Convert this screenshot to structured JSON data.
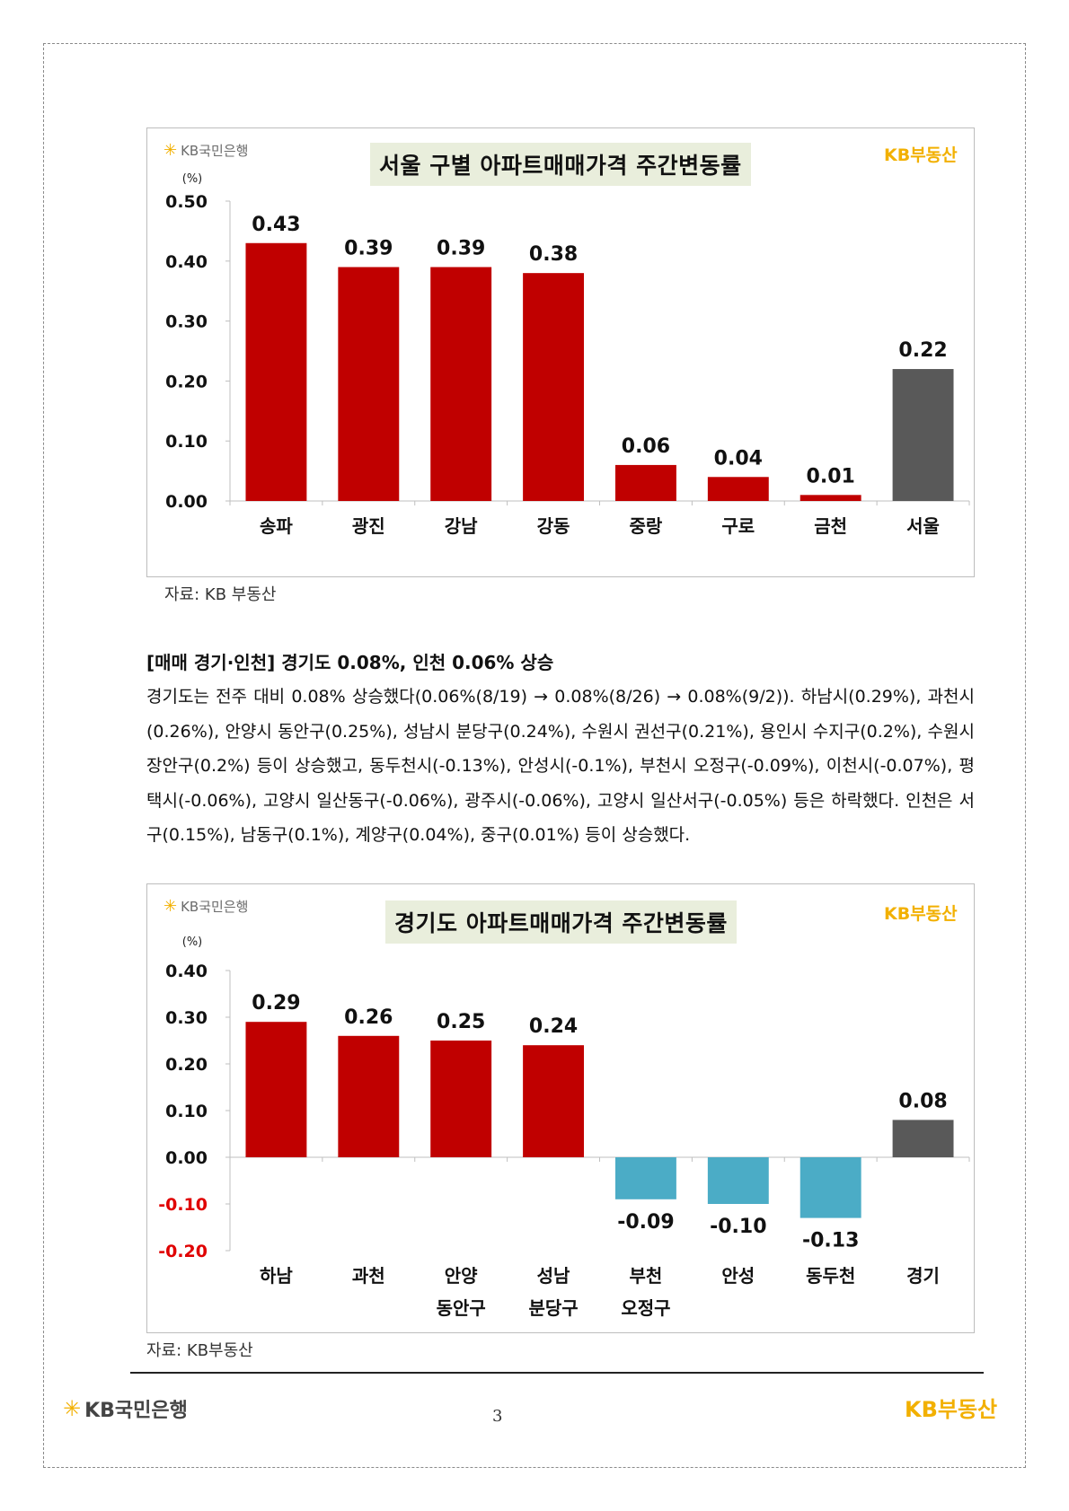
{
  "charts": {
    "seoul": {
      "logo_bank": "KB국민은행",
      "logo_realestate": "KB부동산",
      "title": "서울 구별 아파트매매가격 주간변동률",
      "source": "자료: KB 부동산",
      "colors": {
        "positive": "#c00000",
        "negative": "#4bacc6",
        "total": "#595959"
      }
    },
    "gyeonggi": {
      "logo_bank": "KB국민은행",
      "logo_realestate": "KB부동산",
      "title": "경기도 아파트매매가격 주간변동률",
      "source": "자료: KB부동산",
      "colors": {
        "positive": "#c00000",
        "negative": "#4bacc6",
        "total": "#595959"
      }
    }
  },
  "chart_data": [
    {
      "type": "bar",
      "title": "서울 구별 아파트매매가격 주간변동률",
      "ylabel": "(%)",
      "ylim": [
        0,
        0.5
      ],
      "yticks": [
        "0.00",
        "0.10",
        "0.20",
        "0.30",
        "0.40",
        "0.50"
      ],
      "categories": [
        "송파",
        "광진",
        "강남",
        "강동",
        "중랑",
        "구로",
        "금천",
        "서울"
      ],
      "values": [
        0.43,
        0.39,
        0.39,
        0.38,
        0.06,
        0.04,
        0.01,
        0.22
      ],
      "value_labels": [
        "0.43",
        "0.39",
        "0.39",
        "0.38",
        "0.06",
        "0.04",
        "0.01",
        "0.22"
      ],
      "grid": false,
      "legend": "none"
    },
    {
      "type": "bar",
      "title": "경기도 아파트매매가격 주간변동률",
      "ylabel": "(%)",
      "ylim": [
        -0.2,
        0.4
      ],
      "yticks": [
        "-0.20",
        "-0.10",
        "0.00",
        "0.10",
        "0.20",
        "0.30",
        "0.40"
      ],
      "categories": [
        [
          "하남"
        ],
        [
          "과천"
        ],
        [
          "안양",
          "동안구"
        ],
        [
          "성남",
          "분당구"
        ],
        [
          "부천",
          "오정구"
        ],
        [
          "안성"
        ],
        [
          "동두천"
        ],
        [
          "경기"
        ]
      ],
      "values": [
        0.29,
        0.26,
        0.25,
        0.24,
        -0.09,
        -0.1,
        -0.13,
        0.08
      ],
      "value_labels": [
        "0.29",
        "0.26",
        "0.25",
        "0.24",
        "-0.09",
        "-0.10",
        "-0.13",
        "0.08"
      ],
      "grid": false,
      "legend": "none"
    }
  ],
  "section": {
    "heading": "[매매 경기·인천] 경기도 0.08%, 인천 0.06% 상승",
    "body": "경기도는 전주 대비 0.08% 상승했다(0.06%(8/19) → 0.08%(8/26) → 0.08%(9/2)). 하남시(0.29%), 과천시(0.26%), 안양시 동안구(0.25%), 성남시 분당구(0.24%), 수원시 권선구(0.21%), 용인시 수지구(0.2%), 수원시 장안구(0.2%) 등이 상승했고, 동두천시(-0.13%), 안성시(-0.1%), 부천시 오정구(-0.09%), 이천시(-0.07%), 평택시(-0.06%), 고양시 일산동구(-0.06%), 광주시(-0.06%), 고양시 일산서구(-0.05%) 등은 하락했다. 인천은 서구(0.15%), 남동구(0.1%), 계양구(0.04%), 중구(0.01%) 등이 상승했다."
  },
  "footer": {
    "bank": "KB국민은행",
    "page_number": "3",
    "realestate": "KB부동산"
  }
}
